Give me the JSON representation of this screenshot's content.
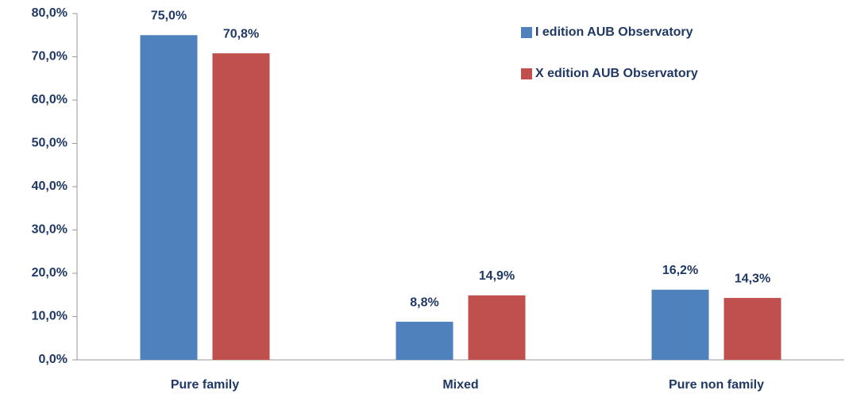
{
  "chart_data": {
    "type": "bar",
    "categories": [
      "Pure family",
      "Mixed",
      "Pure non family"
    ],
    "series": [
      {
        "name": "I edition AUB Observatory",
        "color": "#4f81bd",
        "values": [
          75.0,
          8.8,
          16.2
        ],
        "value_labels": [
          "75,0%",
          "8,8%",
          "16,2%"
        ]
      },
      {
        "name": "X edition AUB Observatory",
        "color": "#c0504d",
        "values": [
          70.8,
          14.9,
          14.3
        ],
        "value_labels": [
          "70,8%",
          "14,9%",
          "14,3%"
        ]
      }
    ],
    "ylim": [
      0,
      80
    ],
    "yticks": [
      {
        "value": 0,
        "label": "0,0%"
      },
      {
        "value": 10,
        "label": "10,0%"
      },
      {
        "value": 20,
        "label": "20,0%"
      },
      {
        "value": 30,
        "label": "30,0%"
      },
      {
        "value": 40,
        "label": "40,0%"
      },
      {
        "value": 50,
        "label": "50,0%"
      },
      {
        "value": 60,
        "label": "60,0%"
      },
      {
        "value": 70,
        "label": "70,0%"
      },
      {
        "value": 80,
        "label": "80,0%"
      }
    ],
    "legend": "upper right",
    "grid": false
  }
}
